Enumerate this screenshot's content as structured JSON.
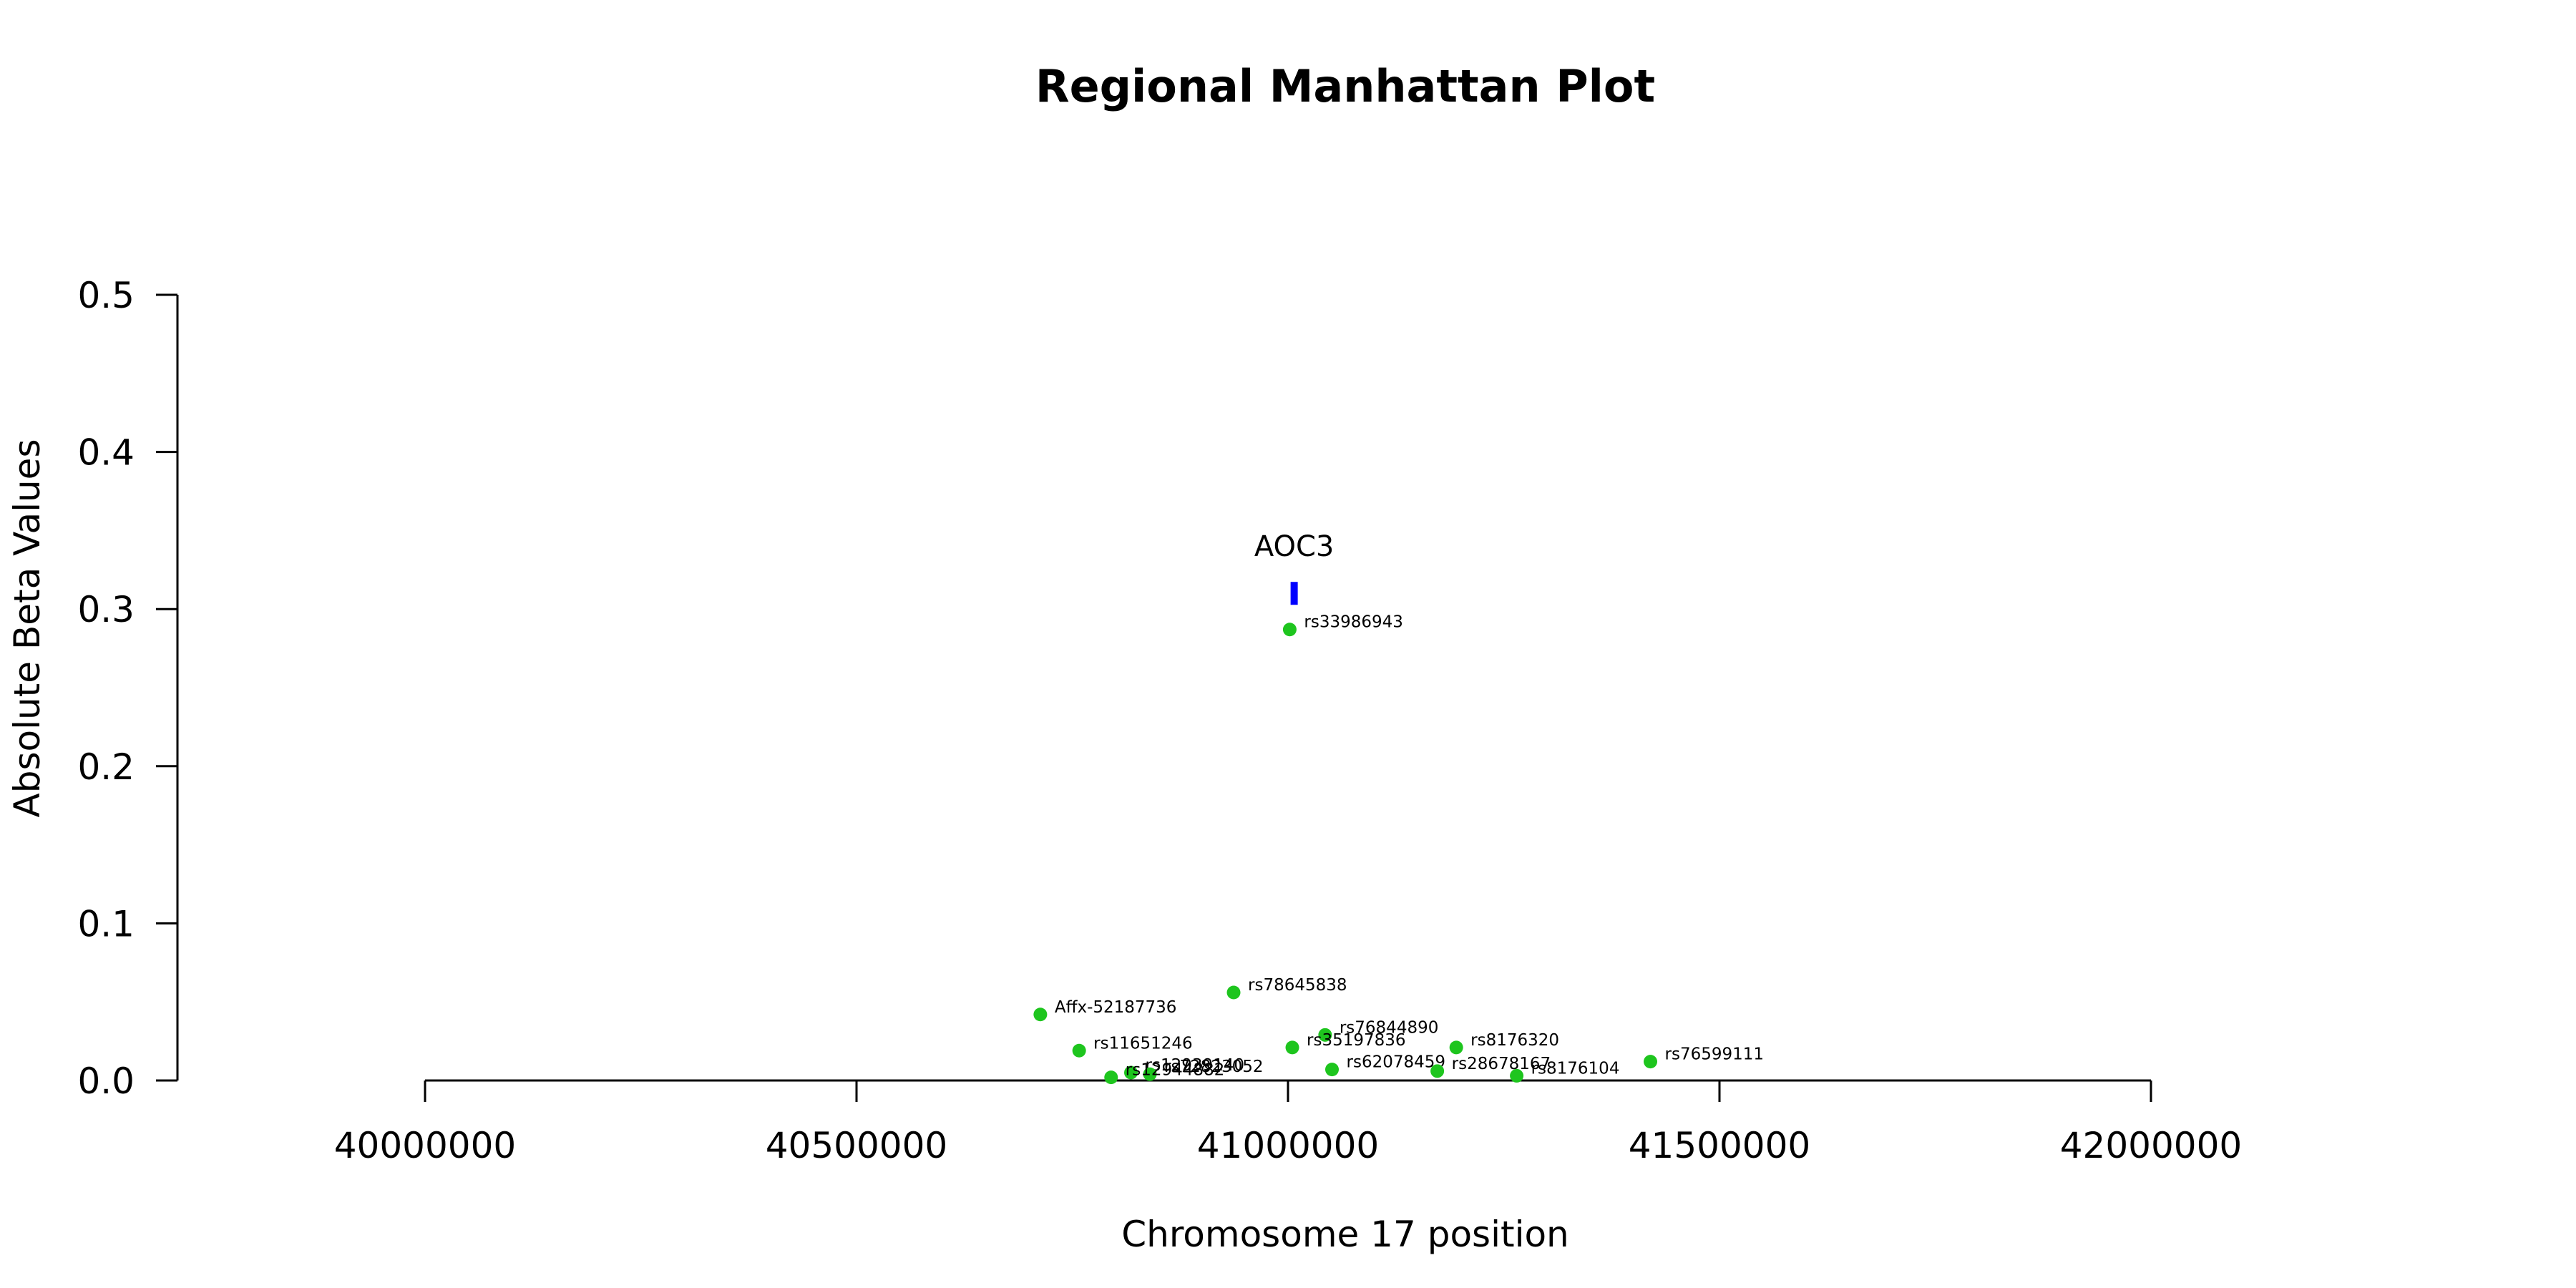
{
  "chart_data": {
    "type": "scatter",
    "title": "Regional Manhattan Plot",
    "xlabel": "Chromosome 17 position",
    "ylabel": "Absolute Beta Values",
    "xlim": [
      40000000,
      42000000
    ],
    "ylim": [
      0,
      0.5
    ],
    "xticks": [
      40000000,
      40500000,
      41000000,
      41500000,
      42000000
    ],
    "yticks": [
      0.0,
      0.1,
      0.2,
      0.3,
      0.4,
      0.5
    ],
    "xtick_labels": [
      "40000000",
      "40500000",
      "41000000",
      "41500000",
      "42000000"
    ],
    "ytick_labels": [
      "0.0",
      "0.1",
      "0.2",
      "0.3",
      "0.4",
      "0.5"
    ],
    "point_color": "#1ec51e",
    "gene_color": "#0000ff",
    "points": [
      {
        "label": "rs33986943",
        "x": 41002000,
        "y": 0.287
      },
      {
        "label": "rs78645838",
        "x": 40937000,
        "y": 0.056
      },
      {
        "label": "Affx-52187736",
        "x": 40713000,
        "y": 0.042
      },
      {
        "label": "rs76844890",
        "x": 41043000,
        "y": 0.029
      },
      {
        "label": "rs35197836",
        "x": 41005000,
        "y": 0.021
      },
      {
        "label": "rs8176320",
        "x": 41195000,
        "y": 0.021
      },
      {
        "label": "rs11651246",
        "x": 40758000,
        "y": 0.019
      },
      {
        "label": "rs76599111",
        "x": 41420000,
        "y": 0.012
      },
      {
        "label": "rs62078459",
        "x": 41051000,
        "y": 0.007
      },
      {
        "label": "rs28678167",
        "x": 41173000,
        "y": 0.006
      },
      {
        "label": "rs12939140",
        "x": 40818000,
        "y": 0.005
      },
      {
        "label": "rs72823052",
        "x": 40840000,
        "y": 0.004
      },
      {
        "label": "rs8176104",
        "x": 41265000,
        "y": 0.003
      },
      {
        "label": "rs12944882",
        "x": 40795000,
        "y": 0.002
      }
    ],
    "genes": [
      {
        "name": "AOC3",
        "start": 41003000,
        "end": 41010000,
        "y": 0.31
      }
    ]
  }
}
